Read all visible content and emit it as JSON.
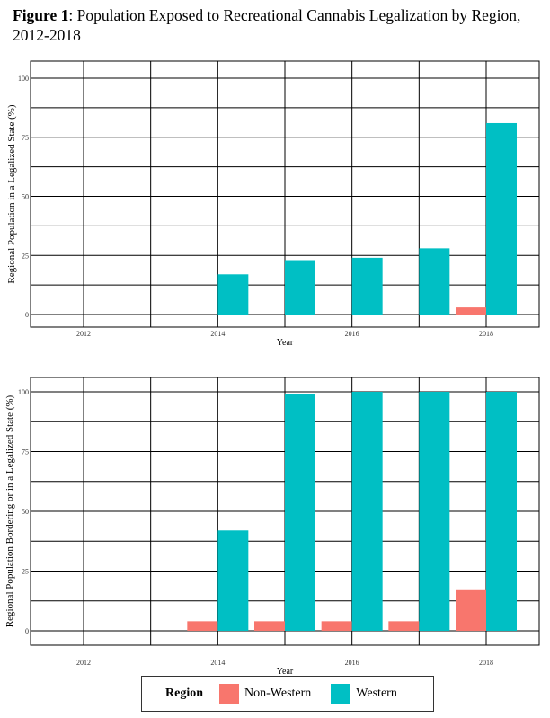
{
  "figure": {
    "label": "Figure 1",
    "title": ": Population Exposed to Recreational Cannabis Legalization by Region, 2012-2018"
  },
  "legend": {
    "title": "Region",
    "entries": [
      {
        "name": "Non-Western",
        "color": "#F8766D"
      },
      {
        "name": "Western",
        "color": "#00BFC4"
      }
    ]
  },
  "chart_data": [
    {
      "type": "bar",
      "title": "",
      "xlabel": "Year",
      "ylabel": "Regional Population in a Legalized State (%)",
      "categories": [
        "2012",
        "2013",
        "2014",
        "2015",
        "2016",
        "2017",
        "2018"
      ],
      "xtick_labels": [
        "2012",
        "2014",
        "2016",
        "2018"
      ],
      "yticks": [
        "0",
        "25",
        "50",
        "75",
        "100"
      ],
      "ylim": [
        0,
        100
      ],
      "series": [
        {
          "name": "Non-Western",
          "color": "#F8766D",
          "values": [
            0,
            0,
            0,
            0,
            0,
            0,
            3
          ]
        },
        {
          "name": "Western",
          "color": "#00BFC4",
          "values": [
            0,
            0,
            17,
            23,
            24,
            28,
            81
          ]
        }
      ]
    },
    {
      "type": "bar",
      "title": "",
      "xlabel": "Year",
      "ylabel": "Regional Population Bordering or in a Legalized State (%)",
      "categories": [
        "2012",
        "2013",
        "2014",
        "2015",
        "2016",
        "2017",
        "2018"
      ],
      "xtick_labels": [
        "2012",
        "2014",
        "2016",
        "2018"
      ],
      "yticks": [
        "0",
        "25",
        "50",
        "75",
        "100"
      ],
      "ylim": [
        0,
        100
      ],
      "series": [
        {
          "name": "Non-Western",
          "color": "#F8766D",
          "values": [
            0,
            0,
            4,
            4,
            4,
            4,
            17
          ]
        },
        {
          "name": "Western",
          "color": "#00BFC4",
          "values": [
            0,
            0,
            42,
            99,
            100,
            100,
            100
          ]
        }
      ]
    }
  ]
}
